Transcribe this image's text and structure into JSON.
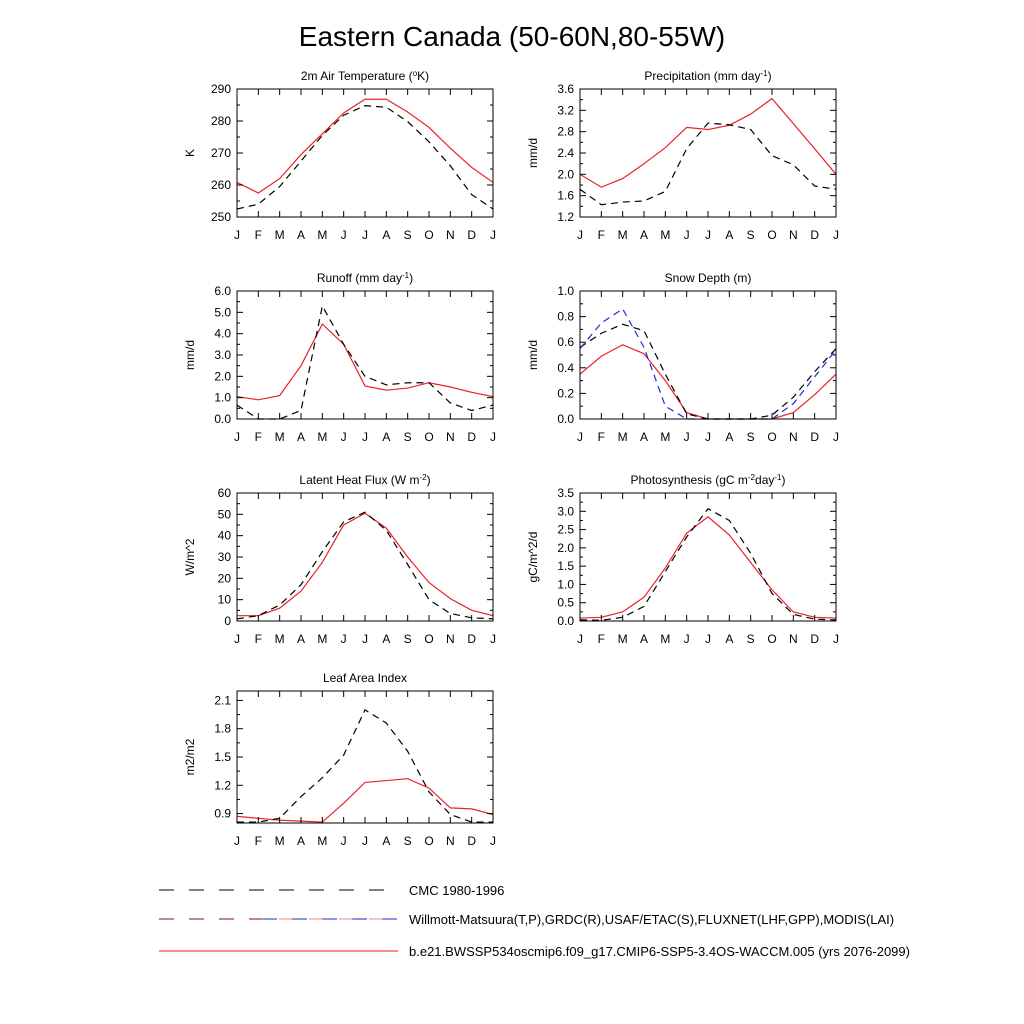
{
  "title": "Eastern Canada (50-60N,80-55W)",
  "colors": {
    "model": "#e8222a",
    "cmc": "#000000",
    "obs": "#1a2ad6",
    "axis": "#000000"
  },
  "months": [
    "J",
    "F",
    "M",
    "A",
    "M",
    "J",
    "J",
    "A",
    "S",
    "O",
    "N",
    "D",
    "J"
  ],
  "legend": [
    {
      "label": "CMC 1980-1996",
      "style": "cmc"
    },
    {
      "label": "Willmott-Matsuura(T,P),GRDC(R),USAF/ETAC(S),FLUXNET(LHF,GPP),MODIS(LAI)",
      "style": "obs"
    },
    {
      "label": "b.e21.BWSSP534oscmip6.f09_g17.CMIP6-SSP5-3.4OS-WACCM.005 (yrs 2076-2099)",
      "style": "model"
    }
  ],
  "chart_data": [
    {
      "type": "line",
      "title": "2m Air Temperature (",
      "title_sup": "o",
      "title_end": "K)",
      "ylabel": "K",
      "ylim": [
        250,
        290
      ],
      "yticks": [
        "250",
        "260",
        "270",
        "280",
        "290"
      ],
      "x": [
        "J",
        "F",
        "M",
        "A",
        "M",
        "J",
        "J",
        "A",
        "S",
        "O",
        "N",
        "D",
        "J"
      ],
      "series": [
        {
          "name": "b.e21.BWSSP534oscmip6 (yrs 2076-2099)",
          "style": "model",
          "values": [
            260.8,
            257.5,
            262.0,
            269.5,
            276.0,
            282.5,
            286.8,
            286.8,
            282.8,
            278.0,
            271.5,
            265.5,
            260.8
          ]
        },
        {
          "name": "CMC 1980-1996",
          "style": "cmc",
          "values": [
            252.5,
            254.0,
            259.5,
            267.5,
            275.5,
            281.8,
            284.8,
            284.3,
            279.8,
            273.5,
            266.0,
            257.0,
            252.5
          ]
        }
      ]
    },
    {
      "type": "line",
      "title": "Precipitation (mm day",
      "title_sup": "-1",
      "title_end": ")",
      "ylabel": "mm/d",
      "ylim": [
        1.2,
        3.6
      ],
      "yticks": [
        "1.2",
        "1.6",
        "2.0",
        "2.4",
        "2.8",
        "3.2",
        "3.6"
      ],
      "x": [
        "J",
        "F",
        "M",
        "A",
        "M",
        "J",
        "J",
        "A",
        "S",
        "O",
        "N",
        "D",
        "J"
      ],
      "series": [
        {
          "name": "b.e21.BWSSP534oscmip6 (yrs 2076-2099)",
          "style": "model",
          "values": [
            2.0,
            1.76,
            1.92,
            2.2,
            2.5,
            2.88,
            2.84,
            2.92,
            3.13,
            3.42,
            2.95,
            2.48,
            2.0
          ]
        },
        {
          "name": "CMC 1980-1996",
          "style": "cmc",
          "values": [
            1.72,
            1.43,
            1.48,
            1.5,
            1.68,
            2.48,
            2.96,
            2.93,
            2.84,
            2.35,
            2.18,
            1.78,
            1.72
          ]
        }
      ]
    },
    {
      "type": "line",
      "title": "Runoff (mm day",
      "title_sup": "-1",
      "title_end": ")",
      "ylabel": "mm/d",
      "ylim": [
        0.0,
        6.0
      ],
      "yticks": [
        "0.0",
        "1.0",
        "2.0",
        "3.0",
        "4.0",
        "5.0",
        "6.0"
      ],
      "x": [
        "J",
        "F",
        "M",
        "A",
        "M",
        "J",
        "J",
        "A",
        "S",
        "O",
        "N",
        "D",
        "J"
      ],
      "series": [
        {
          "name": "b.e21.BWSSP534oscmip6 (yrs 2076-2099)",
          "style": "model",
          "values": [
            1.05,
            0.9,
            1.1,
            2.5,
            4.45,
            3.5,
            1.55,
            1.35,
            1.45,
            1.7,
            1.5,
            1.25,
            1.05
          ]
        },
        {
          "name": "CMC 1980-1996",
          "style": "cmc",
          "values": [
            0.65,
            0.0,
            0.0,
            0.4,
            5.3,
            3.5,
            2.0,
            1.6,
            1.7,
            1.7,
            0.75,
            0.4,
            0.65
          ]
        }
      ]
    },
    {
      "type": "line",
      "title": "Snow Depth (m)",
      "title_sup": "",
      "title_end": "",
      "ylabel": "mm/d",
      "ylim": [
        0.0,
        1.0
      ],
      "yticks": [
        "0.0",
        "0.2",
        "0.4",
        "0.6",
        "0.8",
        "1.0"
      ],
      "x": [
        "J",
        "F",
        "M",
        "A",
        "M",
        "J",
        "J",
        "A",
        "S",
        "O",
        "N",
        "D",
        "J"
      ],
      "series": [
        {
          "name": "b.e21.BWSSP534oscmip6 (yrs 2076-2099)",
          "style": "model",
          "values": [
            0.35,
            0.49,
            0.58,
            0.51,
            0.3,
            0.05,
            0.0,
            0.0,
            0.0,
            0.0,
            0.05,
            0.19,
            0.35
          ]
        },
        {
          "name": "CMC 1980-1996",
          "style": "cmc",
          "values": [
            0.56,
            0.67,
            0.74,
            0.69,
            0.35,
            0.04,
            0.0,
            0.0,
            0.0,
            0.03,
            0.17,
            0.37,
            0.55
          ]
        },
        {
          "name": "Willmott-Matsuura/GRDC/USAF-ETAC/FLUXNET/MODIS",
          "style": "obs",
          "values": [
            0.55,
            0.75,
            0.86,
            0.56,
            0.1,
            0.0,
            0.0,
            0.0,
            0.0,
            0.0,
            0.12,
            0.33,
            0.54
          ]
        }
      ]
    },
    {
      "type": "line",
      "title": "Latent Heat Flux (W m",
      "title_sup": "-2",
      "title_end": ")",
      "ylabel": "W/m^2",
      "ylim": [
        0,
        60
      ],
      "yticks": [
        "0",
        "10",
        "20",
        "30",
        "40",
        "50",
        "60"
      ],
      "x": [
        "J",
        "F",
        "M",
        "A",
        "M",
        "J",
        "J",
        "A",
        "S",
        "O",
        "N",
        "D",
        "J"
      ],
      "series": [
        {
          "name": "b.e21.BWSSP534oscmip6 (yrs 2076-2099)",
          "style": "model",
          "values": [
            2.5,
            2.5,
            6.0,
            14.0,
            27.5,
            45.0,
            50.5,
            43.5,
            30.0,
            18.0,
            10.5,
            5.0,
            2.5
          ]
        },
        {
          "name": "CMC 1980-1996",
          "style": "cmc",
          "values": [
            1.0,
            2.5,
            7.5,
            17.0,
            32.5,
            46.5,
            51.0,
            42.5,
            26.5,
            10.0,
            3.5,
            1.5,
            1.0
          ]
        }
      ]
    },
    {
      "type": "line",
      "title": "Photosynthesis (gC m",
      "title_sup": "-2",
      "title_mid": "day",
      "title_sup2": "-1",
      "title_end": ")",
      "ylabel": "gC/m^2/d",
      "ylim": [
        0.0,
        3.5
      ],
      "yticks": [
        "0.0",
        "0.5",
        "1.0",
        "1.5",
        "2.0",
        "2.5",
        "3.0",
        "3.5"
      ],
      "x": [
        "J",
        "F",
        "M",
        "A",
        "M",
        "J",
        "J",
        "A",
        "S",
        "O",
        "N",
        "D",
        "J"
      ],
      "series": [
        {
          "name": "b.e21.BWSSP534oscmip6 (yrs 2076-2099)",
          "style": "model",
          "values": [
            0.08,
            0.1,
            0.25,
            0.65,
            1.45,
            2.4,
            2.85,
            2.35,
            1.6,
            0.85,
            0.25,
            0.1,
            0.08
          ]
        },
        {
          "name": "CMC 1980-1996",
          "style": "cmc",
          "values": [
            0.03,
            0.02,
            0.1,
            0.4,
            1.35,
            2.3,
            3.07,
            2.75,
            1.85,
            0.75,
            0.18,
            0.05,
            0.03
          ]
        }
      ]
    },
    {
      "type": "line",
      "title": "Leaf Area Index",
      "title_sup": "",
      "title_end": "",
      "ylabel": "m2/m2",
      "ylim": [
        0.8,
        2.2
      ],
      "yticks": [
        "0.9",
        "1.2",
        "1.5",
        "1.8",
        "2.1"
      ],
      "ytick_values": [
        0.9,
        1.2,
        1.5,
        1.8,
        2.1
      ],
      "x": [
        "J",
        "F",
        "M",
        "A",
        "M",
        "J",
        "J",
        "A",
        "S",
        "O",
        "N",
        "D",
        "J"
      ],
      "series": [
        {
          "name": "b.e21.BWSSP534oscmip6 (yrs 2076-2099)",
          "style": "model",
          "values": [
            0.87,
            0.85,
            0.83,
            0.82,
            0.81,
            1.01,
            1.23,
            1.25,
            1.27,
            1.17,
            0.96,
            0.95,
            0.89
          ]
        },
        {
          "name": "CMC 1980-1996",
          "style": "cmc",
          "values": [
            0.81,
            0.81,
            0.85,
            1.08,
            1.28,
            1.52,
            2.0,
            1.86,
            1.56,
            1.13,
            0.89,
            0.81,
            0.81
          ]
        }
      ]
    }
  ]
}
